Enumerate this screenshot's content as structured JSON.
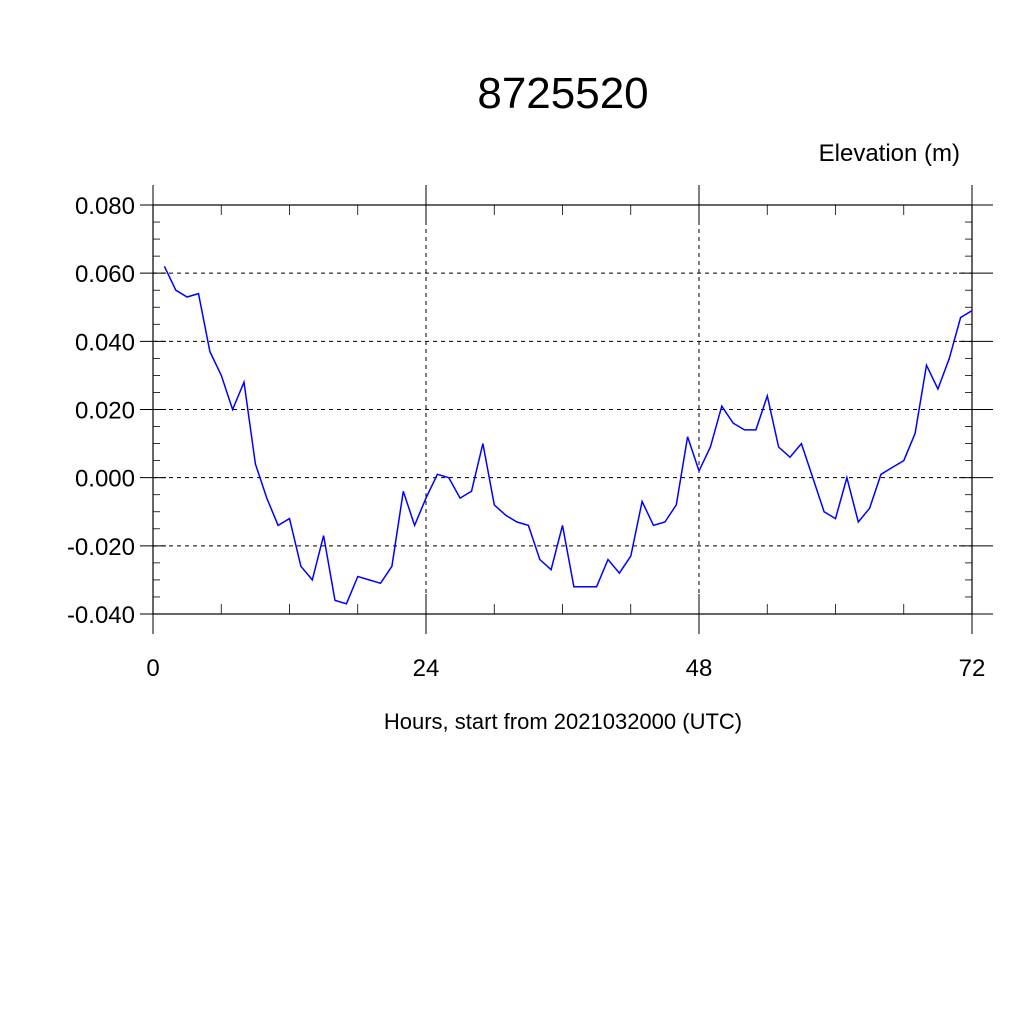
{
  "chart_data": {
    "type": "line",
    "title": "8725520",
    "subtitle": "Elevation (m)",
    "xlabel": "Hours, start from 2021032000 (UTC)",
    "ylabel": "",
    "xlim": [
      0,
      72
    ],
    "ylim": [
      -0.04,
      0.08
    ],
    "x_ticks": [
      0,
      24,
      48,
      72
    ],
    "x_tick_labels": [
      "0",
      "24",
      "48",
      "72"
    ],
    "y_ticks": [
      -0.04,
      -0.02,
      0.0,
      0.02,
      0.04,
      0.06,
      0.08
    ],
    "y_tick_labels": [
      "-0.040",
      "-0.020",
      "0.000",
      "0.020",
      "0.040",
      "0.060",
      "0.080"
    ],
    "grid": true,
    "grid_style": "dashed",
    "legend": "none",
    "line_color": "#0000ff",
    "series": [
      {
        "x": [
          1,
          2,
          3,
          4,
          5,
          6,
          7,
          8,
          9,
          10,
          11,
          12,
          13,
          14,
          15,
          16,
          17,
          18,
          19,
          20,
          21,
          22,
          23,
          24,
          25,
          26,
          27,
          28,
          29,
          30,
          31,
          32,
          33,
          34,
          35,
          36,
          37,
          38,
          39,
          40,
          41,
          42,
          43,
          44,
          45,
          46,
          47,
          48,
          49,
          50,
          51,
          52,
          53,
          54,
          55,
          56,
          57,
          58,
          59,
          60,
          61,
          62,
          63,
          64,
          65,
          66,
          67,
          68,
          69,
          70,
          71,
          72
        ],
        "values": [
          0.062,
          0.055,
          0.053,
          0.054,
          0.037,
          0.03,
          0.02,
          0.028,
          0.004,
          -0.006,
          -0.014,
          -0.012,
          -0.026,
          -0.03,
          -0.017,
          -0.036,
          -0.037,
          -0.029,
          -0.03,
          -0.031,
          -0.026,
          -0.004,
          -0.014,
          -0.006,
          0.001,
          0.0,
          -0.006,
          -0.004,
          0.01,
          -0.008,
          -0.011,
          -0.013,
          -0.014,
          -0.024,
          -0.027,
          -0.014,
          -0.032,
          -0.032,
          -0.032,
          -0.024,
          -0.028,
          -0.023,
          -0.007,
          -0.014,
          -0.013,
          -0.008,
          0.012,
          0.002,
          0.009,
          0.021,
          0.016,
          0.014,
          0.014,
          0.024,
          0.009,
          0.006,
          0.01,
          0.0,
          -0.01,
          -0.012,
          0.0,
          -0.013,
          -0.009,
          0.001,
          0.003,
          0.005,
          0.013,
          0.033,
          0.026,
          0.035,
          0.047,
          0.049
        ]
      }
    ]
  }
}
